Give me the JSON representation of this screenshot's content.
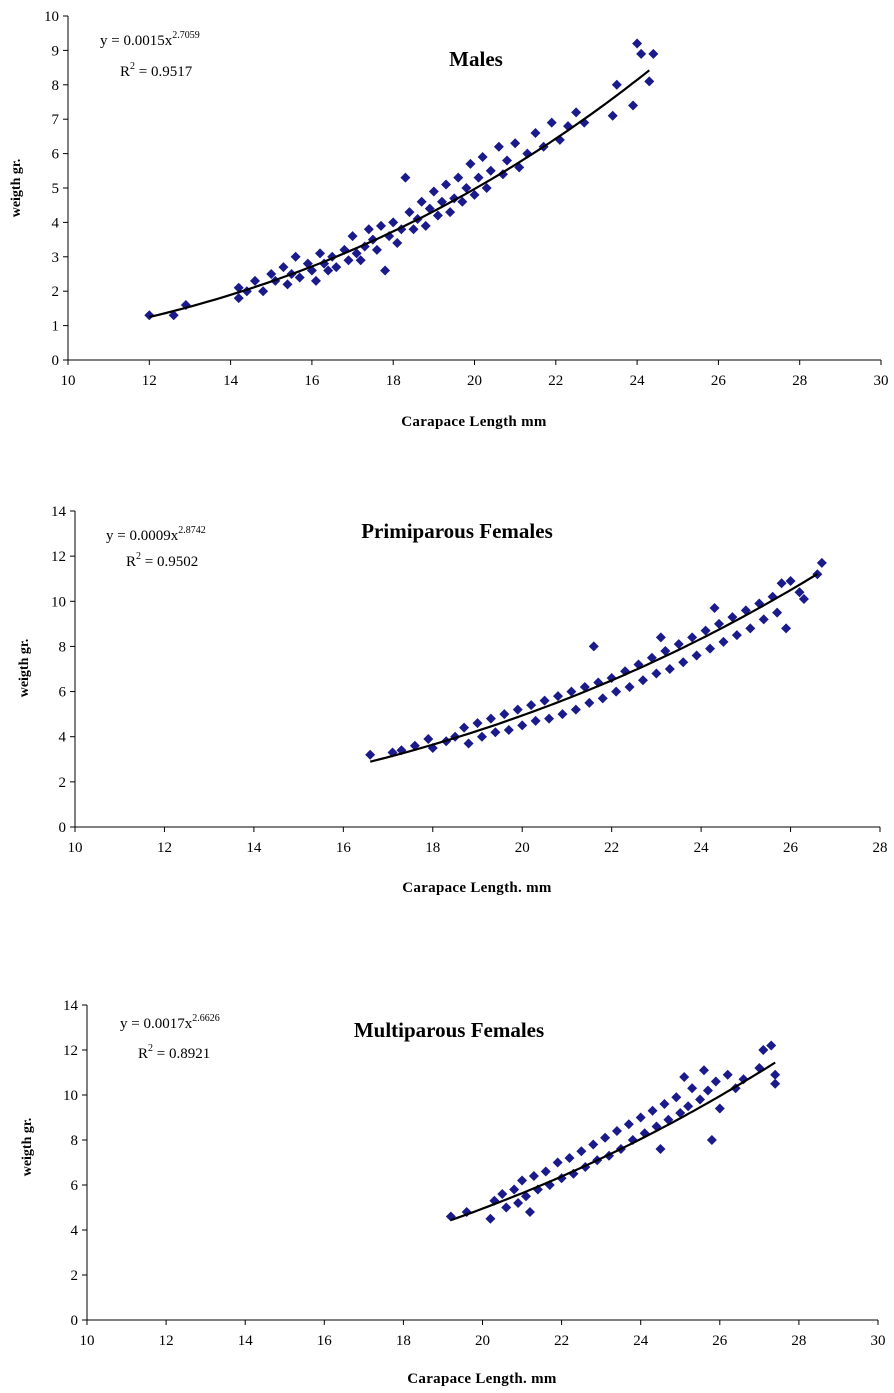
{
  "chart_data": [
    {
      "type": "scatter",
      "title": "Males",
      "xlabel": "Carapace Length mm",
      "ylabel": "weigth gr.",
      "xlim": [
        10,
        30
      ],
      "ylim": [
        0,
        10
      ],
      "xticks": [
        10,
        12,
        14,
        16,
        18,
        20,
        22,
        24,
        26,
        28,
        30
      ],
      "yticks": [
        0,
        1,
        2,
        3,
        4,
        5,
        6,
        7,
        8,
        9,
        10
      ],
      "grid": false,
      "marker_color": "#1b1a8a",
      "trend_color": "#000000",
      "equation": {
        "prefix": "y = 0.0015x",
        "exponent": "2.7059",
        "r2_label": "R",
        "r2_exp": "2",
        "r2_value": " = 0.9517"
      },
      "trendline": {
        "kind": "power",
        "a": 0.0015,
        "b": 2.7059,
        "x_range": [
          12.0,
          24.3
        ]
      },
      "series": [
        {
          "description": "individual measurements",
          "points": [
            [
              12.0,
              1.3
            ],
            [
              12.6,
              1.3
            ],
            [
              12.9,
              1.6
            ],
            [
              14.2,
              2.1
            ],
            [
              14.2,
              1.8
            ],
            [
              14.4,
              2.0
            ],
            [
              14.6,
              2.3
            ],
            [
              14.8,
              2.0
            ],
            [
              15.0,
              2.5
            ],
            [
              15.1,
              2.3
            ],
            [
              15.3,
              2.7
            ],
            [
              15.4,
              2.2
            ],
            [
              15.5,
              2.5
            ],
            [
              15.6,
              3.0
            ],
            [
              15.7,
              2.4
            ],
            [
              15.9,
              2.8
            ],
            [
              16.0,
              2.6
            ],
            [
              16.1,
              2.3
            ],
            [
              16.2,
              3.1
            ],
            [
              16.3,
              2.8
            ],
            [
              16.4,
              2.6
            ],
            [
              16.5,
              3.0
            ],
            [
              16.6,
              2.7
            ],
            [
              16.8,
              3.2
            ],
            [
              16.9,
              2.9
            ],
            [
              17.0,
              3.6
            ],
            [
              17.1,
              3.1
            ],
            [
              17.2,
              2.9
            ],
            [
              17.3,
              3.3
            ],
            [
              17.4,
              3.8
            ],
            [
              17.5,
              3.5
            ],
            [
              17.6,
              3.2
            ],
            [
              17.7,
              3.9
            ],
            [
              17.8,
              2.6
            ],
            [
              17.9,
              3.6
            ],
            [
              18.0,
              4.0
            ],
            [
              18.1,
              3.4
            ],
            [
              18.2,
              3.8
            ],
            [
              18.3,
              5.3
            ],
            [
              18.4,
              4.3
            ],
            [
              18.5,
              3.8
            ],
            [
              18.6,
              4.1
            ],
            [
              18.7,
              4.6
            ],
            [
              18.8,
              3.9
            ],
            [
              18.9,
              4.4
            ],
            [
              19.0,
              4.9
            ],
            [
              19.1,
              4.2
            ],
            [
              19.2,
              4.6
            ],
            [
              19.3,
              5.1
            ],
            [
              19.4,
              4.3
            ],
            [
              19.5,
              4.7
            ],
            [
              19.6,
              5.3
            ],
            [
              19.7,
              4.6
            ],
            [
              19.8,
              5.0
            ],
            [
              19.9,
              5.7
            ],
            [
              20.0,
              4.8
            ],
            [
              20.1,
              5.3
            ],
            [
              20.2,
              5.9
            ],
            [
              20.3,
              5.0
            ],
            [
              20.4,
              5.5
            ],
            [
              20.6,
              6.2
            ],
            [
              20.7,
              5.4
            ],
            [
              20.8,
              5.8
            ],
            [
              21.0,
              6.3
            ],
            [
              21.1,
              5.6
            ],
            [
              21.3,
              6.0
            ],
            [
              21.5,
              6.6
            ],
            [
              21.7,
              6.2
            ],
            [
              21.9,
              6.9
            ],
            [
              22.1,
              6.4
            ],
            [
              22.3,
              6.8
            ],
            [
              22.5,
              7.2
            ],
            [
              22.7,
              6.9
            ],
            [
              23.4,
              7.1
            ],
            [
              23.5,
              8.0
            ],
            [
              23.9,
              7.4
            ],
            [
              24.0,
              9.2
            ],
            [
              24.1,
              8.9
            ],
            [
              24.3,
              8.1
            ],
            [
              24.4,
              8.9
            ]
          ]
        }
      ]
    },
    {
      "type": "scatter",
      "title": "Primiparous Females",
      "xlabel": "Carapace Length. mm",
      "ylabel": "weigth gr.",
      "xlim": [
        10,
        28
      ],
      "ylim": [
        0,
        14
      ],
      "xticks": [
        10,
        12,
        14,
        16,
        18,
        20,
        22,
        24,
        26,
        28
      ],
      "yticks": [
        0,
        2,
        4,
        6,
        8,
        10,
        12,
        14
      ],
      "grid": false,
      "marker_color": "#1b1a8a",
      "trend_color": "#000000",
      "equation": {
        "prefix": "y = 0.0009x",
        "exponent": "2.8742",
        "r2_label": "R",
        "r2_exp": "2",
        "r2_value": " = 0.9502"
      },
      "trendline": {
        "kind": "power",
        "a": 0.0009,
        "b": 2.8742,
        "x_range": [
          16.6,
          26.6
        ]
      },
      "series": [
        {
          "description": "individual measurements",
          "points": [
            [
              16.6,
              3.2
            ],
            [
              17.1,
              3.3
            ],
            [
              17.3,
              3.4
            ],
            [
              17.6,
              3.6
            ],
            [
              17.9,
              3.9
            ],
            [
              18.0,
              3.5
            ],
            [
              18.3,
              3.8
            ],
            [
              18.5,
              4.0
            ],
            [
              18.7,
              4.4
            ],
            [
              18.8,
              3.7
            ],
            [
              19.0,
              4.6
            ],
            [
              19.1,
              4.0
            ],
            [
              19.3,
              4.8
            ],
            [
              19.4,
              4.2
            ],
            [
              19.6,
              5.0
            ],
            [
              19.7,
              4.3
            ],
            [
              19.9,
              5.2
            ],
            [
              20.0,
              4.5
            ],
            [
              20.2,
              5.4
            ],
            [
              20.3,
              4.7
            ],
            [
              20.5,
              5.6
            ],
            [
              20.6,
              4.8
            ],
            [
              20.8,
              5.8
            ],
            [
              20.9,
              5.0
            ],
            [
              21.1,
              6.0
            ],
            [
              21.2,
              5.2
            ],
            [
              21.4,
              6.2
            ],
            [
              21.5,
              5.5
            ],
            [
              21.6,
              8.0
            ],
            [
              21.7,
              6.4
            ],
            [
              21.8,
              5.7
            ],
            [
              22.0,
              6.6
            ],
            [
              22.1,
              6.0
            ],
            [
              22.3,
              6.9
            ],
            [
              22.4,
              6.2
            ],
            [
              22.6,
              7.2
            ],
            [
              22.7,
              6.5
            ],
            [
              22.9,
              7.5
            ],
            [
              23.0,
              6.8
            ],
            [
              23.1,
              8.4
            ],
            [
              23.2,
              7.8
            ],
            [
              23.3,
              7.0
            ],
            [
              23.5,
              8.1
            ],
            [
              23.6,
              7.3
            ],
            [
              23.8,
              8.4
            ],
            [
              23.9,
              7.6
            ],
            [
              24.1,
              8.7
            ],
            [
              24.2,
              7.9
            ],
            [
              24.3,
              9.7
            ],
            [
              24.4,
              9.0
            ],
            [
              24.5,
              8.2
            ],
            [
              24.7,
              9.3
            ],
            [
              24.8,
              8.5
            ],
            [
              25.0,
              9.6
            ],
            [
              25.1,
              8.8
            ],
            [
              25.3,
              9.9
            ],
            [
              25.4,
              9.2
            ],
            [
              25.6,
              10.2
            ],
            [
              25.7,
              9.5
            ],
            [
              25.8,
              10.8
            ],
            [
              25.9,
              8.8
            ],
            [
              26.0,
              10.9
            ],
            [
              26.2,
              10.4
            ],
            [
              26.3,
              10.1
            ],
            [
              26.6,
              11.2
            ],
            [
              26.7,
              11.7
            ]
          ]
        }
      ]
    },
    {
      "type": "scatter",
      "title": "Multiparous Females",
      "xlabel": "Carapace Length. mm",
      "ylabel": "weigth gr.",
      "xlim": [
        10,
        30
      ],
      "ylim": [
        0,
        14
      ],
      "xticks": [
        10,
        12,
        14,
        16,
        18,
        20,
        22,
        24,
        26,
        28,
        30
      ],
      "yticks": [
        0,
        2,
        4,
        6,
        8,
        10,
        12,
        14
      ],
      "grid": false,
      "marker_color": "#1b1a8a",
      "trend_color": "#000000",
      "equation": {
        "prefix": "y = 0.0017x",
        "exponent": "2.6626",
        "r2_label": "R",
        "r2_exp": "2",
        "r2_value": " = 0.8921"
      },
      "trendline": {
        "kind": "power",
        "a": 0.0017,
        "b": 2.6626,
        "x_range": [
          19.2,
          27.4
        ]
      },
      "series": [
        {
          "description": "individual measurements",
          "points": [
            [
              19.2,
              4.6
            ],
            [
              19.6,
              4.8
            ],
            [
              20.2,
              4.5
            ],
            [
              20.3,
              5.3
            ],
            [
              20.5,
              5.6
            ],
            [
              20.6,
              5.0
            ],
            [
              20.8,
              5.8
            ],
            [
              20.9,
              5.2
            ],
            [
              21.0,
              6.2
            ],
            [
              21.1,
              5.5
            ],
            [
              21.2,
              4.8
            ],
            [
              21.3,
              6.4
            ],
            [
              21.4,
              5.8
            ],
            [
              21.6,
              6.6
            ],
            [
              21.7,
              6.0
            ],
            [
              21.9,
              7.0
            ],
            [
              22.0,
              6.3
            ],
            [
              22.2,
              7.2
            ],
            [
              22.3,
              6.5
            ],
            [
              22.5,
              7.5
            ],
            [
              22.6,
              6.8
            ],
            [
              22.8,
              7.8
            ],
            [
              22.9,
              7.1
            ],
            [
              23.1,
              8.1
            ],
            [
              23.2,
              7.3
            ],
            [
              23.4,
              8.4
            ],
            [
              23.5,
              7.6
            ],
            [
              23.7,
              8.7
            ],
            [
              23.8,
              8.0
            ],
            [
              24.0,
              9.0
            ],
            [
              24.1,
              8.3
            ],
            [
              24.3,
              9.3
            ],
            [
              24.4,
              8.6
            ],
            [
              24.5,
              7.6
            ],
            [
              24.6,
              9.6
            ],
            [
              24.7,
              8.9
            ],
            [
              24.9,
              9.9
            ],
            [
              25.0,
              9.2
            ],
            [
              25.1,
              10.8
            ],
            [
              25.2,
              9.5
            ],
            [
              25.3,
              10.3
            ],
            [
              25.5,
              9.8
            ],
            [
              25.6,
              11.1
            ],
            [
              25.7,
              10.2
            ],
            [
              25.8,
              8.0
            ],
            [
              25.9,
              10.6
            ],
            [
              26.0,
              9.4
            ],
            [
              26.2,
              10.9
            ],
            [
              26.4,
              10.3
            ],
            [
              26.6,
              10.7
            ],
            [
              27.0,
              11.2
            ],
            [
              27.1,
              12.0
            ],
            [
              27.3,
              12.2
            ],
            [
              27.4,
              10.5
            ],
            [
              27.4,
              10.9
            ]
          ]
        }
      ]
    }
  ]
}
